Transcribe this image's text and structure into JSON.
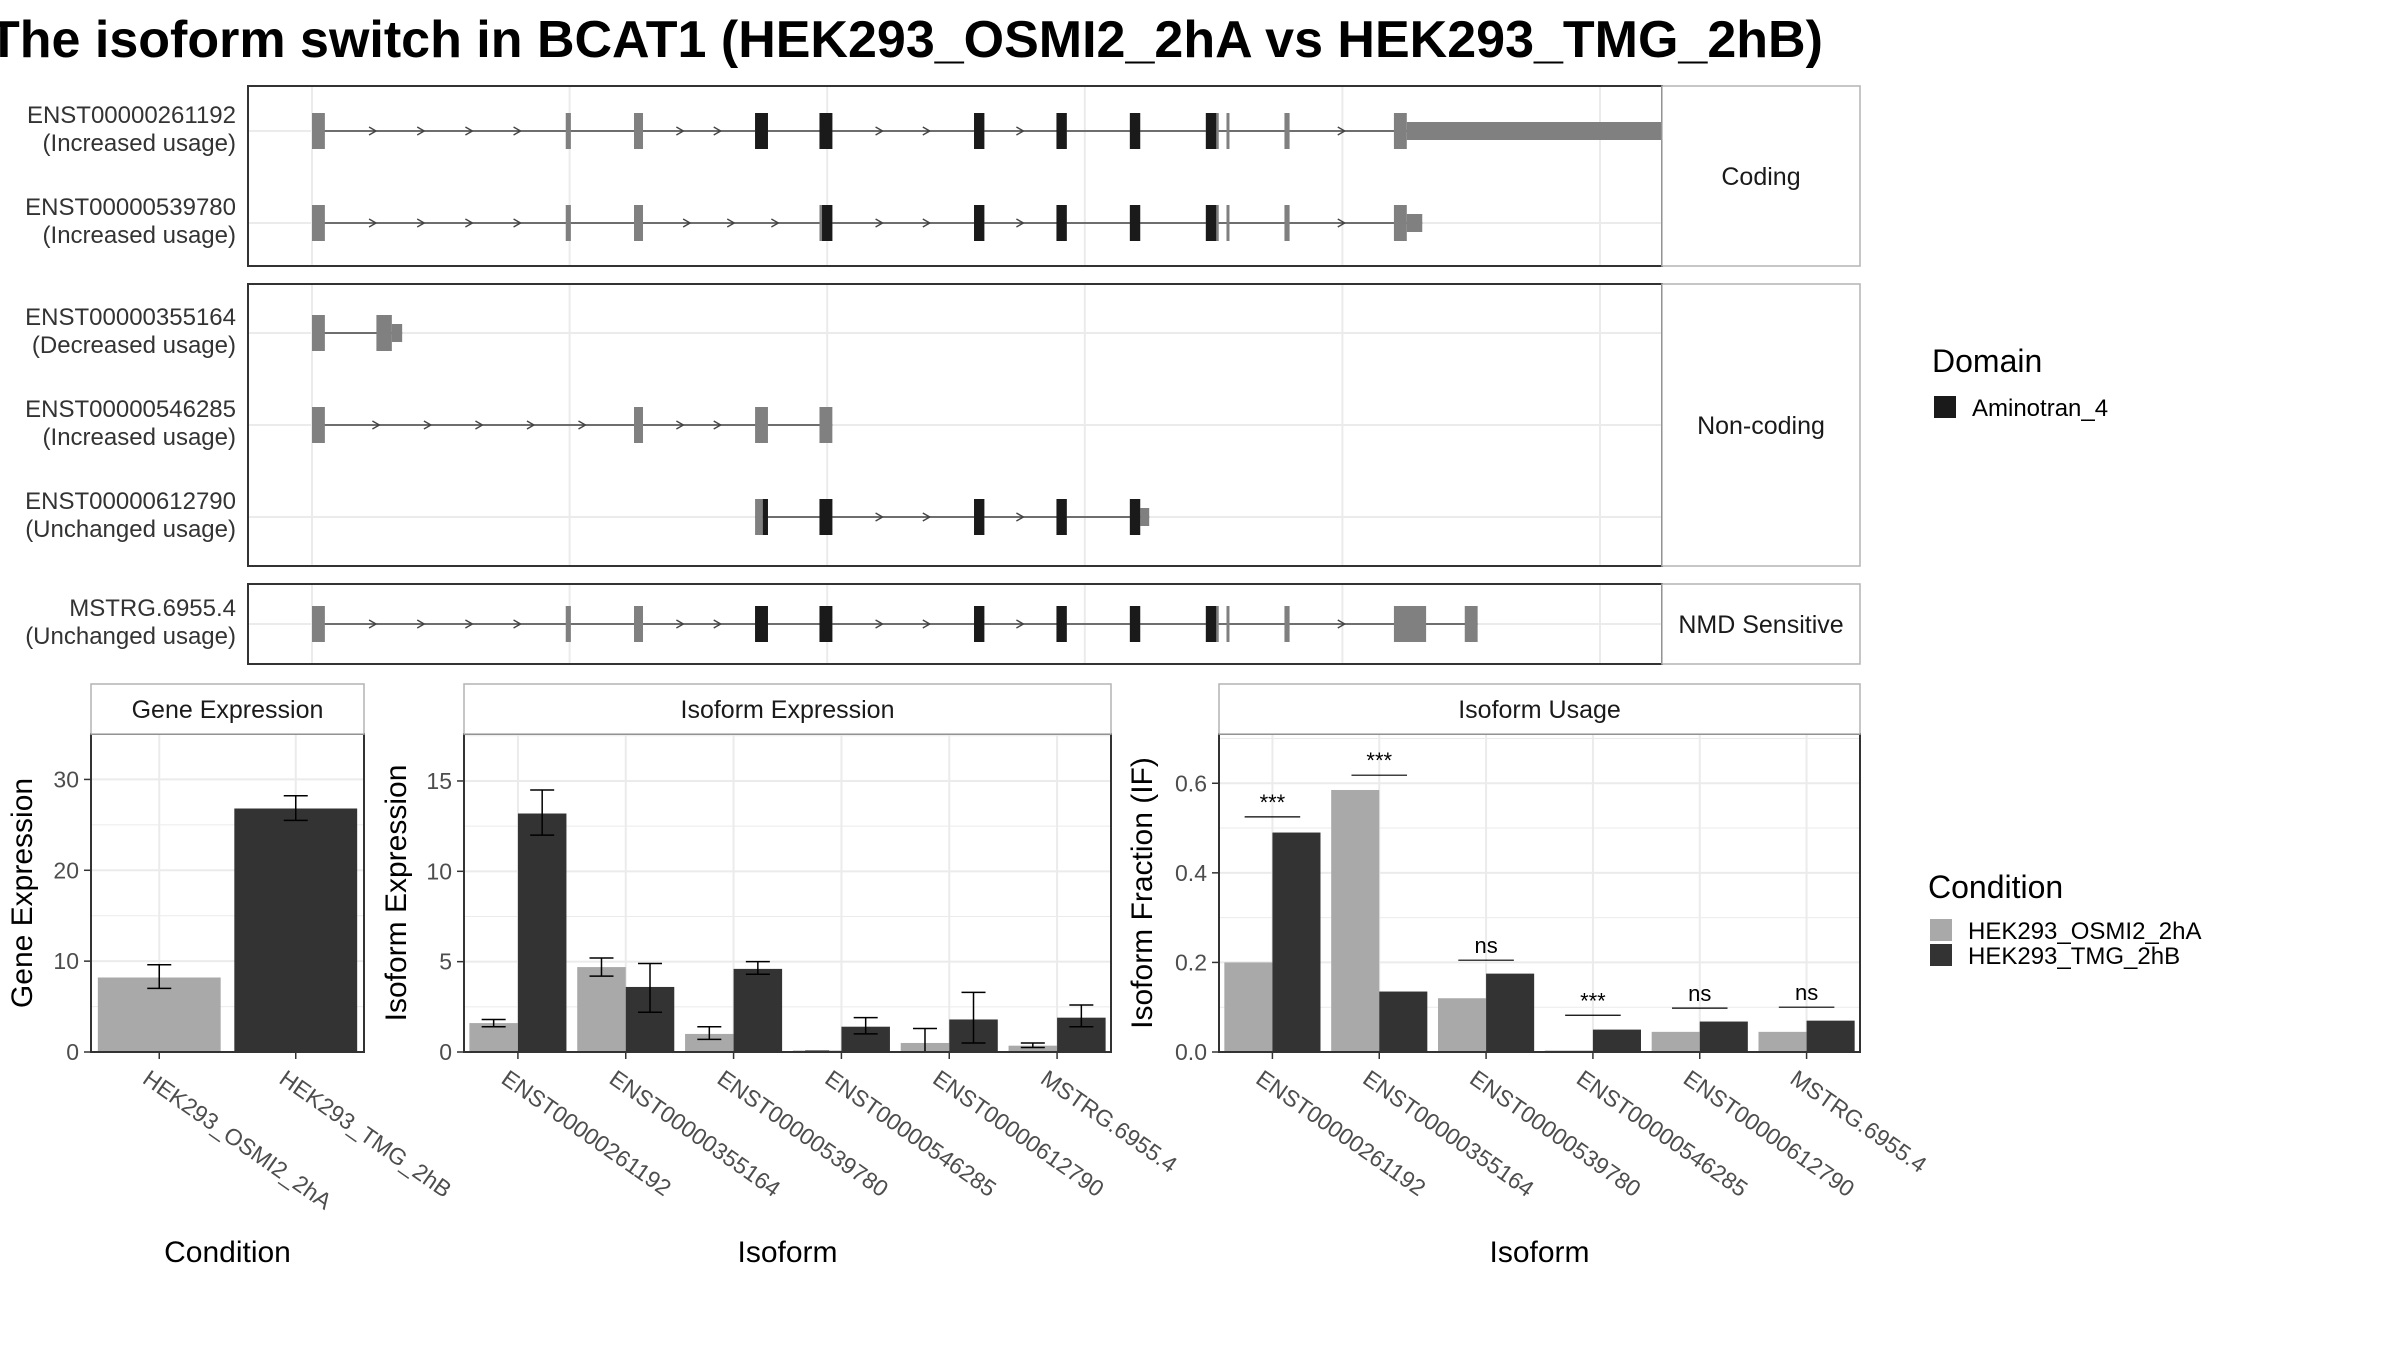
{
  "title": "The isoform switch in BCAT1 (HEK293_OSMI2_2hA vs HEK293_TMG_2hB)",
  "colors": {
    "condition_a": "#a9a9a9",
    "condition_b": "#333333",
    "exon_utr": "#808080",
    "domain": "#1a1a1a",
    "intron": "#444444",
    "grid": "#ebebeb",
    "panel_border": "#333333",
    "strip_fill": "#ffffff",
    "strip_border": "#b3b3b3"
  },
  "structure": {
    "coordinate_range": [
      0,
      1000
    ],
    "facets": [
      {
        "label": "Coding",
        "transcripts": [
          {
            "id": "ENST00000261192",
            "usage": "(Increased usage)",
            "exons": [
              [
                0,
                10
              ],
              [
                197,
                201
              ],
              [
                250,
                257
              ],
              [
                344,
                354
              ],
              [
                394,
                404
              ],
              [
                514,
                522
              ],
              [
                578,
                586
              ],
              [
                635,
                643
              ],
              [
                694,
                704
              ],
              [
                710,
                712
              ],
              [
                755,
                759
              ],
              [
                840,
                850
              ],
              [
                850,
                1050
              ]
            ],
            "domain_exons": [
              [
                344,
                354
              ],
              [
                394,
                404
              ],
              [
                514,
                522
              ],
              [
                578,
                586
              ],
              [
                635,
                643
              ],
              [
                694,
                702
              ]
            ]
          },
          {
            "id": "ENST00000539780",
            "usage": "(Increased usage)",
            "exons": [
              [
                0,
                10
              ],
              [
                197,
                201
              ],
              [
                250,
                257
              ],
              [
                394,
                404
              ],
              [
                514,
                522
              ],
              [
                578,
                586
              ],
              [
                635,
                643
              ],
              [
                694,
                704
              ],
              [
                710,
                712
              ],
              [
                755,
                759
              ],
              [
                840,
                850
              ],
              [
                850,
                862
              ]
            ],
            "domain_exons": [
              [
                396,
                404
              ],
              [
                514,
                522
              ],
              [
                578,
                586
              ],
              [
                635,
                643
              ],
              [
                694,
                702
              ]
            ]
          }
        ]
      },
      {
        "label": "Non-coding",
        "transcripts": [
          {
            "id": "ENST00000355164",
            "usage": "(Decreased usage)",
            "exons": [
              [
                0,
                10
              ],
              [
                50,
                62
              ],
              [
                62,
                70
              ]
            ],
            "domain_exons": []
          },
          {
            "id": "ENST00000546285",
            "usage": "(Increased usage)",
            "exons": [
              [
                0,
                10
              ],
              [
                250,
                257
              ],
              [
                344,
                354
              ],
              [
                394,
                404
              ]
            ],
            "domain_exons": []
          },
          {
            "id": "ENST00000612790",
            "usage": "(Unchanged usage)",
            "exons": [
              [
                344,
                350
              ],
              [
                350,
                354
              ],
              [
                394,
                404
              ],
              [
                514,
                522
              ],
              [
                578,
                586
              ],
              [
                635,
                643
              ],
              [
                643,
                650
              ]
            ],
            "domain_exons": [
              [
                350,
                354
              ],
              [
                394,
                404
              ],
              [
                514,
                522
              ],
              [
                578,
                586
              ],
              [
                635,
                643
              ]
            ]
          }
        ]
      },
      {
        "label": "NMD Sensitive",
        "transcripts": [
          {
            "id": "MSTRG.6955.4",
            "usage": "(Unchanged usage)",
            "exons": [
              [
                0,
                10
              ],
              [
                197,
                201
              ],
              [
                250,
                257
              ],
              [
                344,
                354
              ],
              [
                394,
                404
              ],
              [
                514,
                522
              ],
              [
                578,
                586
              ],
              [
                635,
                643
              ],
              [
                694,
                704
              ],
              [
                710,
                712
              ],
              [
                755,
                759
              ],
              [
                840,
                865
              ],
              [
                895,
                905
              ]
            ],
            "domain_exons": [
              [
                344,
                354
              ],
              [
                394,
                404
              ],
              [
                514,
                522
              ],
              [
                578,
                586
              ],
              [
                635,
                643
              ],
              [
                694,
                702
              ]
            ]
          }
        ]
      }
    ]
  },
  "legend_domain": {
    "title": "Domain",
    "items": [
      "Aminotran_4"
    ]
  },
  "legend_condition": {
    "title": "Condition",
    "items": [
      "HEK293_OSMI2_2hA",
      "HEK293_TMG_2hB"
    ]
  },
  "chart_data": [
    {
      "type": "bar",
      "title": "Gene Expression",
      "xlabel": "Condition",
      "ylabel": "Gene Expression",
      "ylim": [
        0,
        35
      ],
      "yticks": [
        0,
        10,
        20,
        30
      ],
      "categories": [
        "HEK293_OSMI2_2hA",
        "HEK293_TMG_2hB"
      ],
      "values": [
        8.2,
        26.8
      ],
      "errors": [
        [
          7.0,
          9.6
        ],
        [
          25.5,
          28.2
        ]
      ]
    },
    {
      "type": "bar",
      "title": "Isoform Expression",
      "xlabel": "Isoform",
      "ylabel": "Isoform Expression",
      "ylim": [
        0,
        17.6
      ],
      "yticks": [
        0,
        5,
        10,
        15
      ],
      "categories": [
        "ENST00000261192",
        "ENST00000355164",
        "ENST00000539780",
        "ENST00000546285",
        "ENST00000612790",
        "MSTRG.6955.4"
      ],
      "series": [
        {
          "name": "HEK293_OSMI2_2hA",
          "values": [
            1.6,
            4.7,
            1.0,
            0.02,
            0.5,
            0.35
          ],
          "errors": [
            [
              1.4,
              1.8
            ],
            [
              4.2,
              5.2
            ],
            [
              0.7,
              1.4
            ],
            [
              0.0,
              0.04
            ],
            [
              0.0,
              1.3
            ],
            [
              0.25,
              0.5
            ]
          ]
        },
        {
          "name": "HEK293_TMG_2hB",
          "values": [
            13.2,
            3.6,
            4.6,
            1.4,
            1.8,
            1.9
          ],
          "errors": [
            [
              12.0,
              14.5
            ],
            [
              2.2,
              4.9
            ],
            [
              4.3,
              5.0
            ],
            [
              1.0,
              1.9
            ],
            [
              0.5,
              3.3
            ],
            [
              1.4,
              2.6
            ]
          ]
        }
      ]
    },
    {
      "type": "bar",
      "title": "Isoform Usage",
      "xlabel": "Isoform",
      "ylabel": "Isoform Fraction (IF)",
      "ylim": [
        0,
        0.71
      ],
      "yticks": [
        0.0,
        0.2,
        0.4,
        0.6
      ],
      "ytick_labels": [
        "0.0",
        "0.2",
        "0.4",
        "0.6"
      ],
      "categories": [
        "ENST00000261192",
        "ENST00000355164",
        "ENST00000539780",
        "ENST00000546285",
        "ENST00000612790",
        "MSTRG.6955.4"
      ],
      "series": [
        {
          "name": "HEK293_OSMI2_2hA",
          "values": [
            0.2,
            0.585,
            0.12,
            0.0,
            0.045,
            0.045
          ]
        },
        {
          "name": "HEK293_TMG_2hB",
          "values": [
            0.49,
            0.135,
            0.175,
            0.05,
            0.068,
            0.07
          ]
        }
      ],
      "annotations": [
        {
          "label": "***",
          "y": 0.525
        },
        {
          "label": "***",
          "y": 0.618
        },
        {
          "label": "ns",
          "y": 0.205
        },
        {
          "label": "***",
          "y": 0.082
        },
        {
          "label": "ns",
          "y": 0.098
        },
        {
          "label": "ns",
          "y": 0.1
        }
      ]
    }
  ]
}
